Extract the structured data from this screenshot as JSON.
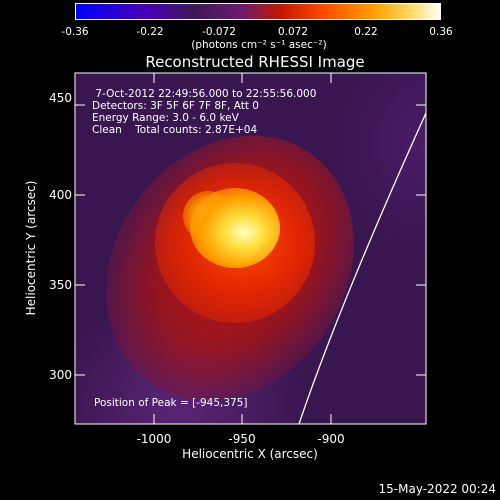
{
  "colorbar": {
    "ticks": [
      "-0.36",
      "-0.22",
      "-0.072",
      "0.072",
      "0.22",
      "0.36"
    ],
    "units": "(photons cm⁻² s⁻¹ asec⁻²)"
  },
  "title": "Reconstructed RHESSI Image",
  "annotations": [
    " 7-Oct-2012 22:49:56.000 to 22:55:56.000",
    "Detectors: 3F 5F 6F 7F 8F, Att 0",
    "Energy Range: 3.0 - 6.0 keV",
    "Clean    Total counts: 2.87E+04"
  ],
  "peak_label": "Position of Peak = [-945,375]",
  "xaxis": {
    "label": "Heliocentric X (arcsec)",
    "ticks": [
      "-1000",
      "-950",
      "-900"
    ]
  },
  "yaxis": {
    "label": "Heliocentric Y (arcsec)",
    "ticks": [
      "450",
      "400",
      "350",
      "300"
    ]
  },
  "footer": "15-May-2022 00:24",
  "colors": {
    "background": "#000000",
    "peak": "#ffffc0",
    "limb": "#ffffff"
  }
}
